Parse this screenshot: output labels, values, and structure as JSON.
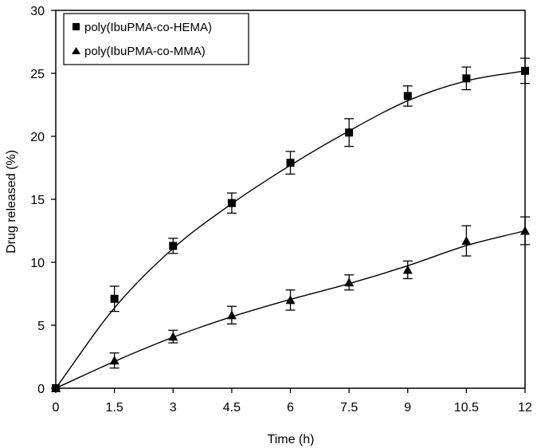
{
  "chart_data": {
    "type": "scatter",
    "title": "",
    "xlabel": "Time (h)",
    "ylabel": "Drug released (%)",
    "xlim": [
      0,
      12
    ],
    "ylim": [
      0,
      30
    ],
    "x_ticks": [
      "0",
      "1.5",
      "3",
      "4.5",
      "6",
      "7.5",
      "9",
      "10.5",
      "12"
    ],
    "y_ticks": [
      "0",
      "5",
      "10",
      "15",
      "20",
      "25",
      "30"
    ],
    "grid": false,
    "legend_position": "top-left",
    "x": [
      0,
      1.5,
      3,
      4.5,
      6,
      7.5,
      9,
      10.5,
      12
    ],
    "series": [
      {
        "name": "poly(IbuPMA-co-HEMA)",
        "marker": "square",
        "values": [
          0,
          7.1,
          11.3,
          14.7,
          17.9,
          20.3,
          23.2,
          24.6,
          25.2
        ],
        "errors": [
          0,
          1.0,
          0.6,
          0.8,
          0.9,
          1.1,
          0.8,
          0.9,
          1.0
        ],
        "fit_curve": true
      },
      {
        "name": "poly(IbuPMA-co-MMA)",
        "marker": "triangle",
        "values": [
          0,
          2.2,
          4.1,
          5.8,
          7.0,
          8.4,
          9.4,
          11.7,
          12.5
        ],
        "errors": [
          0,
          0.6,
          0.5,
          0.7,
          0.8,
          0.6,
          0.7,
          1.2,
          1.1
        ],
        "fit_curve": true
      }
    ],
    "color": "#000000"
  }
}
